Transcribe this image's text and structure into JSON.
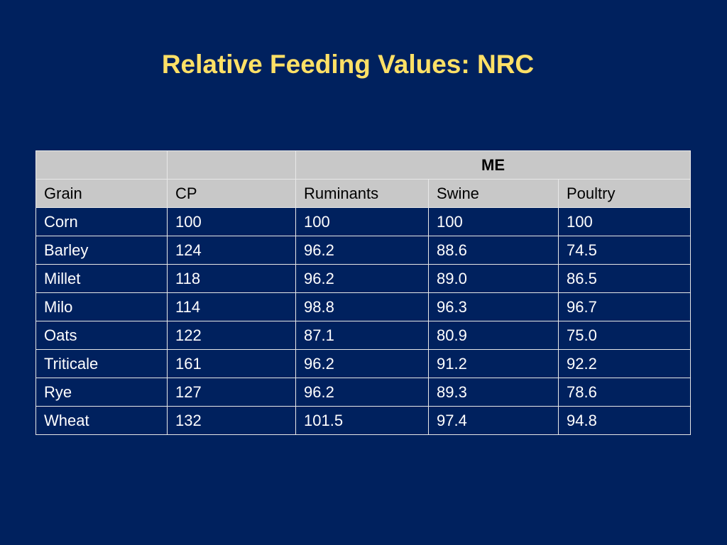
{
  "slide": {
    "title": "Relative Feeding Values: NRC"
  },
  "table": {
    "group_header": "ME",
    "columns": [
      "Grain",
      "CP",
      "Ruminants",
      "Swine",
      "Poultry"
    ],
    "rows": [
      [
        "Corn",
        "100",
        "100",
        "100",
        "100"
      ],
      [
        "Barley",
        "124",
        "96.2",
        "88.6",
        "74.5"
      ],
      [
        "Millet",
        "118",
        "96.2",
        "89.0",
        "86.5"
      ],
      [
        "Milo",
        "114",
        "98.8",
        "96.3",
        "96.7"
      ],
      [
        "Oats",
        "122",
        "87.1",
        "80.9",
        "75.0"
      ],
      [
        "Triticale",
        "161",
        "96.2",
        "91.2",
        "92.2"
      ],
      [
        "Rye",
        "127",
        "96.2",
        "89.3",
        "78.6"
      ],
      [
        "Wheat",
        "132",
        "101.5",
        "97.4",
        "94.8"
      ]
    ]
  },
  "colors": {
    "background": "#00215e",
    "title": "#ffe066",
    "header_fill": "#c8c8c8",
    "cell_text": "#ffffff"
  }
}
